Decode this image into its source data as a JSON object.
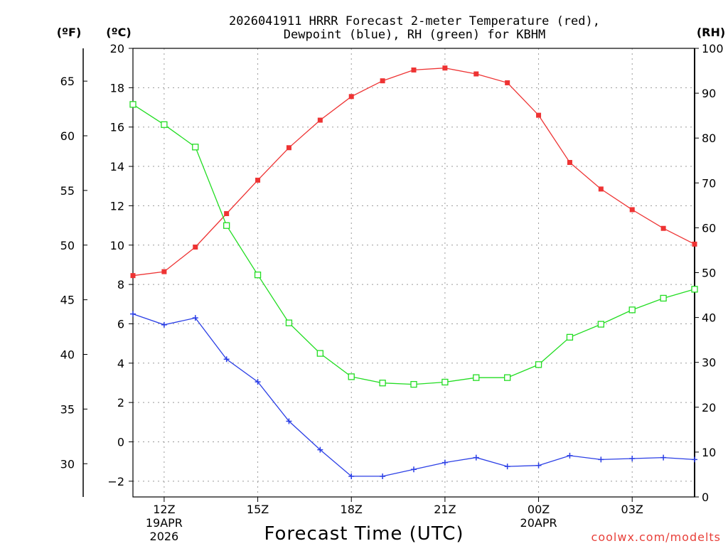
{
  "chart_data": {
    "type": "line",
    "title": "2026041911 HRRR Forecast 2-meter Temperature (red),",
    "title_line2": "Dewpoint (blue), RH (green) for KBHM",
    "xlabel": "Forecast Time (UTC)",
    "credit": "coolwx.com/modelts",
    "unit_labels": {
      "fahrenheit": "(ºF)",
      "celsius": "(ºC)",
      "rh": "(RH)"
    },
    "x_hours": [
      11,
      12,
      13,
      14,
      15,
      16,
      17,
      18,
      19,
      20,
      21,
      22,
      23,
      24,
      25,
      26,
      27,
      28,
      29
    ],
    "xlim": [
      11,
      29
    ],
    "x_ticks": [
      {
        "hour": 12,
        "label": "12Z",
        "sub1": "19APR",
        "sub2": "2026"
      },
      {
        "hour": 15,
        "label": "15Z",
        "sub1": "",
        "sub2": ""
      },
      {
        "hour": 18,
        "label": "18Z",
        "sub1": "",
        "sub2": ""
      },
      {
        "hour": 21,
        "label": "21Z",
        "sub1": "",
        "sub2": ""
      },
      {
        "hour": 24,
        "label": "00Z",
        "sub1": "20APR",
        "sub2": ""
      },
      {
        "hour": 27,
        "label": "03Z",
        "sub1": "",
        "sub2": ""
      }
    ],
    "y_celsius": {
      "min": -2.8,
      "max": 20,
      "ticks": [
        -2,
        0,
        2,
        4,
        6,
        8,
        10,
        12,
        14,
        16,
        18,
        20
      ]
    },
    "y_fahrenheit": {
      "ticks": [
        30,
        35,
        40,
        45,
        50,
        55,
        60,
        65
      ]
    },
    "y_rh": {
      "min": 0,
      "max": 100,
      "ticks": [
        0,
        10,
        20,
        30,
        40,
        50,
        60,
        70,
        80,
        90,
        100
      ]
    },
    "series": [
      {
        "name": "2-meter Temperature",
        "unit": "C",
        "axis": "celsius",
        "color": "#ee3333",
        "marker": "filled-square",
        "values": [
          8.45,
          8.65,
          9.9,
          11.6,
          13.3,
          14.95,
          16.35,
          17.55,
          18.35,
          18.9,
          19.0,
          18.7,
          18.25,
          16.6,
          14.2,
          12.85,
          11.8,
          10.85,
          10.05
        ]
      },
      {
        "name": "Dewpoint",
        "unit": "C",
        "axis": "celsius",
        "color": "#2b3fe6",
        "marker": "plus",
        "values": [
          6.5,
          5.95,
          6.3,
          4.2,
          3.05,
          1.05,
          -0.4,
          -1.75,
          -1.75,
          -1.4,
          -1.05,
          -0.8,
          -1.25,
          -1.2,
          -0.7,
          -0.9,
          -0.85,
          -0.8,
          -0.9
        ]
      },
      {
        "name": "RH",
        "unit": "%",
        "axis": "rh",
        "color": "#22dd22",
        "marker": "open-square",
        "values": [
          87.5,
          83,
          78,
          60.5,
          49.5,
          38.8,
          32,
          26.8,
          25.4,
          25.1,
          25.6,
          26.6,
          26.6,
          29.5,
          35.6,
          38.5,
          41.7,
          44.3,
          46.3
        ]
      }
    ]
  }
}
